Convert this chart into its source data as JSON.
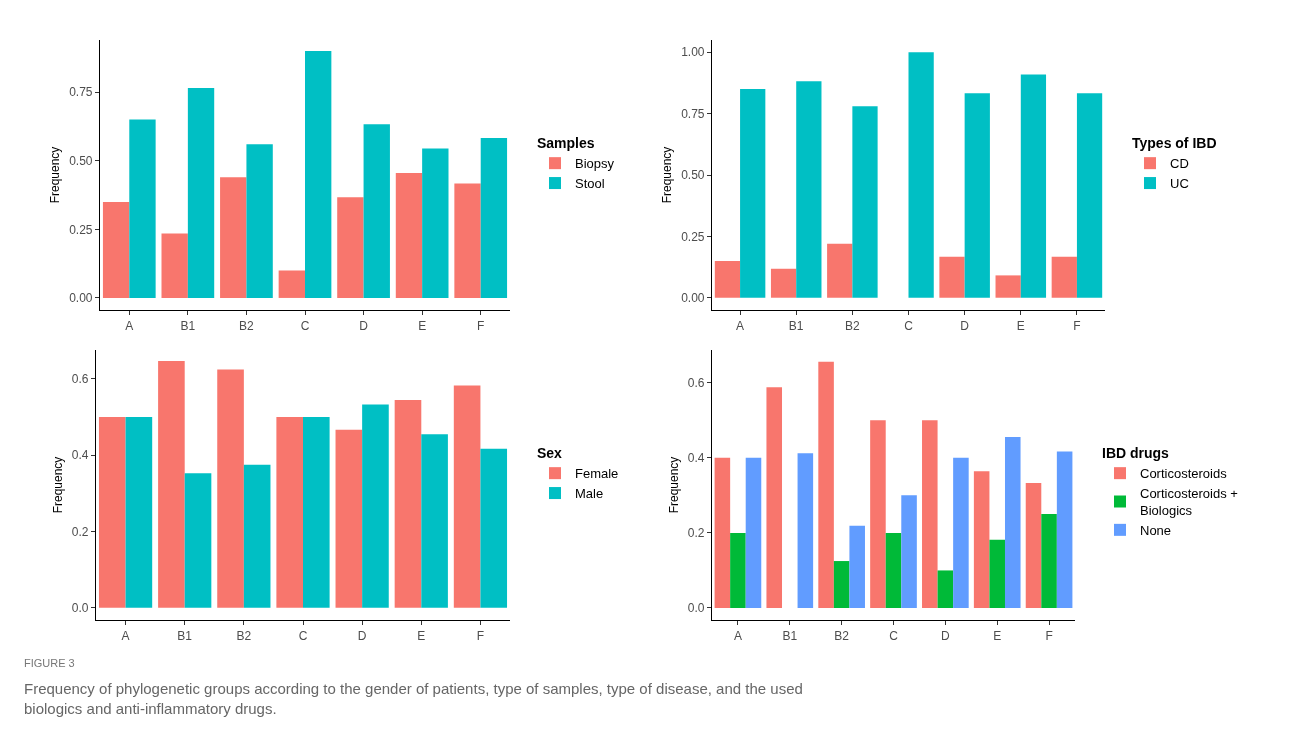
{
  "chart_data": [
    {
      "type": "bar",
      "categories": [
        "A",
        "B1",
        "B2",
        "C",
        "D",
        "E",
        "F"
      ],
      "ylabel": "Frequency",
      "legend_title": "Samples",
      "legend": "right",
      "grid": false,
      "ylim": [
        -0.044,
        0.94
      ],
      "yticks": [
        {
          "value": 0,
          "label": "0.00"
        },
        {
          "value": 0.25,
          "label": "0.25"
        },
        {
          "value": 0.5,
          "label": "0.50"
        },
        {
          "value": 0.75,
          "label": "0.75"
        }
      ],
      "series": [
        {
          "name": "Biopsy",
          "color": "#f8766d",
          "values": [
            0.35,
            0.235,
            0.44,
            0.1,
            0.367,
            0.455,
            0.417
          ]
        },
        {
          "name": "Stool",
          "color": "#00bfc4",
          "values": [
            0.65,
            0.765,
            0.56,
            0.9,
            0.633,
            0.545,
            0.583
          ]
        }
      ]
    },
    {
      "type": "bar",
      "categories": [
        "A",
        "B1",
        "B2",
        "C",
        "D",
        "E",
        "F"
      ],
      "ylabel": "Frequency",
      "legend_title": "Types of IBD",
      "legend": "right",
      "grid": false,
      "ylim": [
        -0.05,
        1.05
      ],
      "yticks": [
        {
          "value": 0,
          "label": "0.00"
        },
        {
          "value": 0.25,
          "label": "0.25"
        },
        {
          "value": 0.5,
          "label": "0.50"
        },
        {
          "value": 0.75,
          "label": "0.75"
        },
        {
          "value": 1,
          "label": "1.00"
        }
      ],
      "series": [
        {
          "name": "CD",
          "color": "#f8766d",
          "values": [
            0.15,
            0.118,
            0.22,
            0,
            0.167,
            0.091,
            0.167
          ]
        },
        {
          "name": "UC",
          "color": "#00bfc4",
          "values": [
            0.85,
            0.882,
            0.78,
            1.0,
            0.833,
            0.909,
            0.833
          ]
        }
      ]
    },
    {
      "type": "bar",
      "categories": [
        "A",
        "B1",
        "B2",
        "C",
        "D",
        "E",
        "F"
      ],
      "ylabel": "Frequency",
      "legend_title": "Sex",
      "legend": "right",
      "grid": false,
      "ylim": [
        -0.032,
        0.676
      ],
      "yticks": [
        {
          "value": 0,
          "label": "0.0"
        },
        {
          "value": 0.2,
          "label": "0.2"
        },
        {
          "value": 0.4,
          "label": "0.4"
        },
        {
          "value": 0.6,
          "label": "0.6"
        }
      ],
      "series": [
        {
          "name": "Female",
          "color": "#f8766d",
          "values": [
            0.5,
            0.647,
            0.625,
            0.5,
            0.467,
            0.545,
            0.583
          ]
        },
        {
          "name": "Male",
          "color": "#00bfc4",
          "values": [
            0.5,
            0.353,
            0.375,
            0.5,
            0.533,
            0.455,
            0.417
          ]
        }
      ]
    },
    {
      "type": "bar",
      "categories": [
        "A",
        "B1",
        "B2",
        "C",
        "D",
        "E",
        "F"
      ],
      "ylabel": "Frequency",
      "legend_title": "IBD drugs",
      "legend": "right",
      "grid": false,
      "ylim": [
        -0.032,
        0.687
      ],
      "yticks": [
        {
          "value": 0,
          "label": "0.0"
        },
        {
          "value": 0.2,
          "label": "0.2"
        },
        {
          "value": 0.4,
          "label": "0.4"
        },
        {
          "value": 0.6,
          "label": "0.6"
        }
      ],
      "series": [
        {
          "name": "Corticosteroids",
          "color": "#f8766d",
          "values": [
            0.4,
            0.588,
            0.656,
            0.5,
            0.5,
            0.364,
            0.333
          ]
        },
        {
          "name": "Corticosteroids + Biologics",
          "color": "#00ba38",
          "values": [
            0.2,
            0,
            0.125,
            0.2,
            0.1,
            0.182,
            0.25
          ]
        },
        {
          "name": "None",
          "color": "#619cff",
          "values": [
            0.4,
            0.412,
            0.219,
            0.3,
            0.4,
            0.455,
            0.417
          ]
        }
      ],
      "annotations": [
        "FIGURE 3",
        "Frequency of phylogenetic groups according to the gender of patients, type of samples, type of disease, and the used biologics and anti-inflammatory drugs."
      ]
    }
  ]
}
